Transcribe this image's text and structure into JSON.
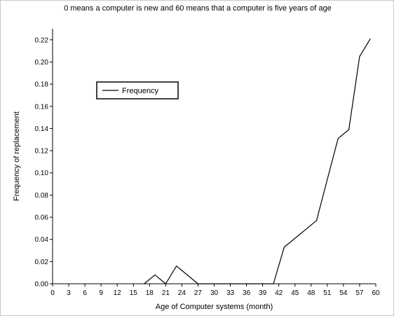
{
  "chart_data": {
    "type": "line",
    "title": "0 means a computer is new and 60 means that a computer is five years of age",
    "xlabel": "Age of Computer systems (month)",
    "ylabel": "Frequency of replacement",
    "xlim": [
      0,
      60
    ],
    "ylim": [
      0,
      0.23
    ],
    "x_ticks": [
      "0",
      "3",
      "6",
      "9",
      "12",
      "15",
      "18",
      "21",
      "24",
      "27",
      "30",
      "33",
      "36",
      "39",
      "42",
      "45",
      "48",
      "51",
      "54",
      "57",
      "60"
    ],
    "y_ticks": [
      "0.00",
      "0.02",
      "0.04",
      "0.06",
      "0.08",
      "0.10",
      "0.12",
      "0.14",
      "0.16",
      "0.18",
      "0.20",
      "0.22"
    ],
    "grid": false,
    "legend": {
      "position": "upper-left",
      "entries": [
        "Frequency"
      ]
    },
    "series": [
      {
        "name": "Frequency",
        "color": "#000000",
        "x": [
          17,
          19,
          21,
          23,
          27,
          41,
          43,
          45,
          47,
          49,
          51,
          53,
          55,
          57,
          59
        ],
        "y": [
          0,
          0.008,
          0,
          0.016,
          0,
          0,
          0.033,
          0.041,
          0.049,
          0.057,
          0.094,
          0.131,
          0.139,
          0.205,
          0.221
        ]
      }
    ]
  }
}
